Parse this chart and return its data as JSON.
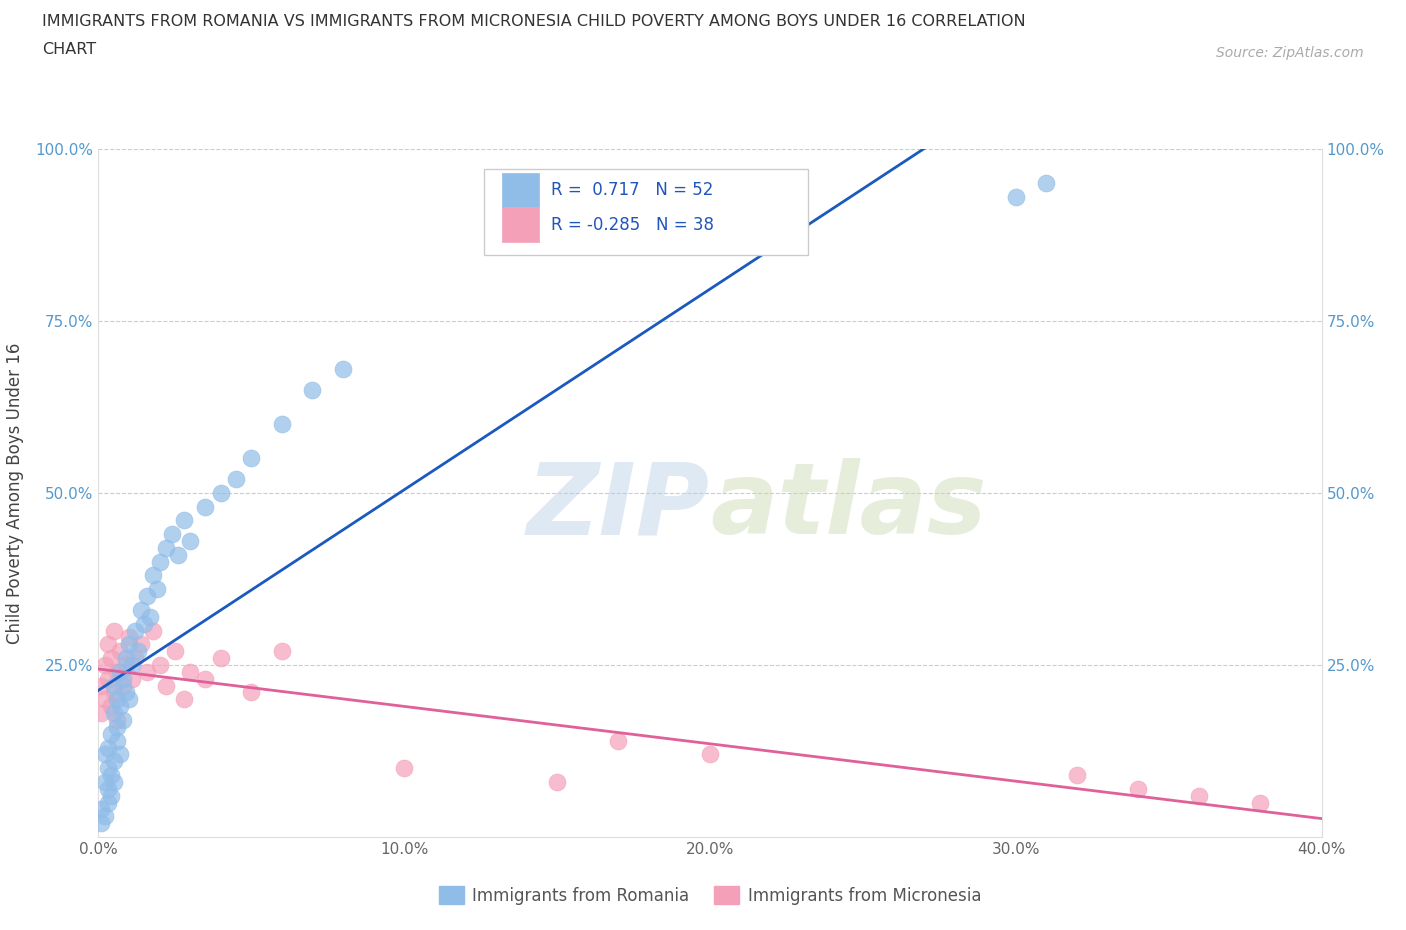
{
  "title_line1": "IMMIGRANTS FROM ROMANIA VS IMMIGRANTS FROM MICRONESIA CHILD POVERTY AMONG BOYS UNDER 16 CORRELATION",
  "title_line2": "CHART",
  "source": "Source: ZipAtlas.com",
  "ylabel": "Child Poverty Among Boys Under 16",
  "xlim": [
    0.0,
    0.4
  ],
  "ylim": [
    0.0,
    1.0
  ],
  "xticks": [
    0.0,
    0.1,
    0.2,
    0.3,
    0.4
  ],
  "yticks": [
    0.0,
    0.25,
    0.5,
    0.75,
    1.0
  ],
  "xticklabels": [
    "0.0%",
    "10.0%",
    "20.0%",
    "30.0%",
    "40.0%"
  ],
  "yticklabels": [
    "",
    "25.0%",
    "50.0%",
    "75.0%",
    "100.0%"
  ],
  "romania_color": "#90bce8",
  "micronesia_color": "#f4a0b8",
  "romania_line_color": "#1a5abf",
  "micronesia_line_color": "#e0609a",
  "r_romania": 0.717,
  "n_romania": 52,
  "r_micronesia": -0.285,
  "n_micronesia": 38,
  "watermark_zip": "ZIP",
  "watermark_atlas": "atlas",
  "legend_label_romania": "Immigrants from Romania",
  "legend_label_micronesia": "Immigrants from Micronesia",
  "romania_x": [
    0.001,
    0.001,
    0.002,
    0.002,
    0.002,
    0.003,
    0.003,
    0.003,
    0.003,
    0.004,
    0.004,
    0.004,
    0.005,
    0.005,
    0.005,
    0.005,
    0.006,
    0.006,
    0.006,
    0.007,
    0.007,
    0.007,
    0.008,
    0.008,
    0.009,
    0.009,
    0.01,
    0.01,
    0.011,
    0.012,
    0.013,
    0.014,
    0.015,
    0.016,
    0.017,
    0.018,
    0.019,
    0.02,
    0.022,
    0.024,
    0.026,
    0.028,
    0.03,
    0.035,
    0.04,
    0.045,
    0.05,
    0.06,
    0.07,
    0.08,
    0.3,
    0.31
  ],
  "romania_y": [
    0.04,
    0.02,
    0.08,
    0.12,
    0.03,
    0.07,
    0.1,
    0.05,
    0.13,
    0.09,
    0.15,
    0.06,
    0.18,
    0.11,
    0.22,
    0.08,
    0.14,
    0.2,
    0.16,
    0.12,
    0.24,
    0.19,
    0.17,
    0.23,
    0.21,
    0.26,
    0.2,
    0.28,
    0.25,
    0.3,
    0.27,
    0.33,
    0.31,
    0.35,
    0.32,
    0.38,
    0.36,
    0.4,
    0.42,
    0.44,
    0.41,
    0.46,
    0.43,
    0.48,
    0.5,
    0.52,
    0.55,
    0.6,
    0.65,
    0.68,
    0.93,
    0.95
  ],
  "micronesia_x": [
    0.001,
    0.001,
    0.002,
    0.002,
    0.003,
    0.003,
    0.004,
    0.004,
    0.005,
    0.005,
    0.006,
    0.006,
    0.007,
    0.008,
    0.009,
    0.01,
    0.011,
    0.012,
    0.014,
    0.016,
    0.018,
    0.02,
    0.022,
    0.025,
    0.028,
    0.03,
    0.035,
    0.04,
    0.05,
    0.06,
    0.1,
    0.15,
    0.17,
    0.2,
    0.32,
    0.34,
    0.36,
    0.38
  ],
  "micronesia_y": [
    0.22,
    0.18,
    0.25,
    0.2,
    0.23,
    0.28,
    0.19,
    0.26,
    0.21,
    0.3,
    0.24,
    0.17,
    0.27,
    0.22,
    0.25,
    0.29,
    0.23,
    0.26,
    0.28,
    0.24,
    0.3,
    0.25,
    0.22,
    0.27,
    0.2,
    0.24,
    0.23,
    0.26,
    0.21,
    0.27,
    0.1,
    0.08,
    0.14,
    0.12,
    0.09,
    0.07,
    0.06,
    0.05
  ]
}
